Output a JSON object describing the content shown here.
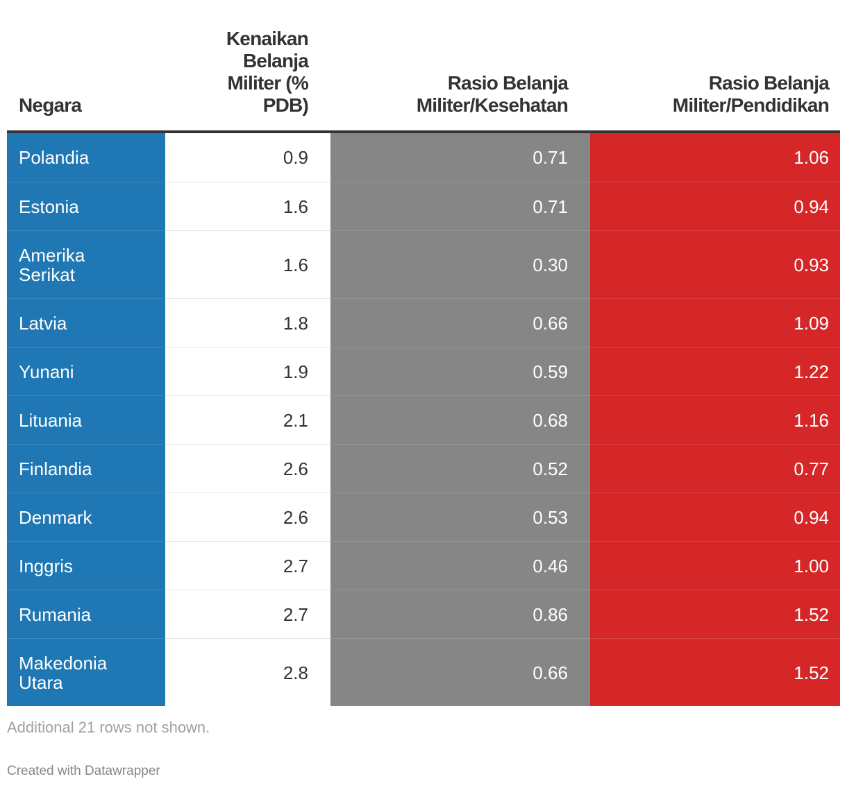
{
  "chart_data": {
    "type": "table",
    "columns": [
      "Negara",
      "Kenaikan Belanja Militer (% PDB)",
      "Rasio Belanja Militer/Kesehatan",
      "Rasio Belanja Militer/Pendidikan"
    ],
    "header_lines": [
      [
        "Negara"
      ],
      [
        "Kenaikan",
        "Belanja",
        "Militer (%",
        "PDB)"
      ],
      [
        "Rasio Belanja",
        "Militer/Kesehatan"
      ],
      [
        "Rasio Belanja",
        "Militer/Pendidikan"
      ]
    ],
    "rows": [
      {
        "country": "Polandia",
        "increase": "0.9",
        "health_ratio": "0.71",
        "education_ratio": "1.06"
      },
      {
        "country": "Estonia",
        "increase": "1.6",
        "health_ratio": "0.71",
        "education_ratio": "0.94"
      },
      {
        "country": "Amerika Serikat",
        "increase": "1.6",
        "health_ratio": "0.30",
        "education_ratio": "0.93"
      },
      {
        "country": "Latvia",
        "increase": "1.8",
        "health_ratio": "0.66",
        "education_ratio": "1.09"
      },
      {
        "country": "Yunani",
        "increase": "1.9",
        "health_ratio": "0.59",
        "education_ratio": "1.22"
      },
      {
        "country": "Lituania",
        "increase": "2.1",
        "health_ratio": "0.68",
        "education_ratio": "1.16"
      },
      {
        "country": "Finlandia",
        "increase": "2.6",
        "health_ratio": "0.52",
        "education_ratio": "0.77"
      },
      {
        "country": "Denmark",
        "increase": "2.6",
        "health_ratio": "0.53",
        "education_ratio": "0.94"
      },
      {
        "country": "Inggris",
        "increase": "2.7",
        "health_ratio": "0.46",
        "education_ratio": "1.00"
      },
      {
        "country": "Rumania",
        "increase": "2.7",
        "health_ratio": "0.86",
        "education_ratio": "1.52"
      },
      {
        "country": "Makedonia Utara",
        "increase": "2.8",
        "health_ratio": "0.66",
        "education_ratio": "1.52"
      }
    ],
    "colors": {
      "country": "#1f77b4",
      "health": "#868686",
      "education": "#d62728"
    }
  },
  "footer": {
    "note": "Additional 21 rows not shown.",
    "credit": "Created with Datawrapper"
  }
}
